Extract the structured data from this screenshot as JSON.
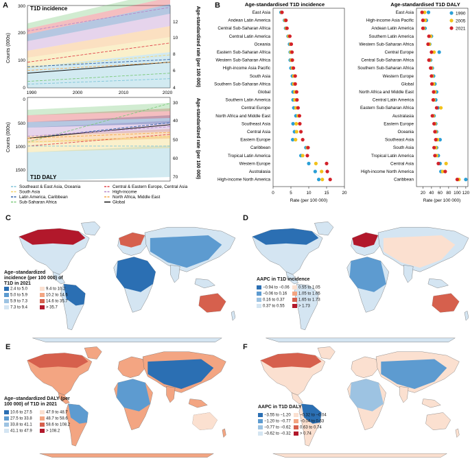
{
  "panels": {
    "A": {
      "letter": "A",
      "incidence": {
        "label": "T1D incidence",
        "left_axis": "Counts (000s)",
        "right_axis": "Age-standardized rate (per 100 000)",
        "left_ticks": [
          "300",
          "200",
          "100",
          "0"
        ],
        "right_ticks": [
          "12",
          "10",
          "8",
          "6",
          "4"
        ],
        "x_ticks": [
          "1990",
          "2000",
          "2010",
          "2020"
        ]
      },
      "daly": {
        "label": "T1D DALY",
        "left_axis": "Counts (000s)",
        "right_axis": "Age-standardized rate (per 100 000)",
        "left_ticks": [
          "0",
          "500",
          "1000",
          "1500"
        ],
        "right_ticks": [
          "30",
          "40",
          "50",
          "60",
          "70"
        ]
      },
      "legend": [
        {
          "label": "Southeast & East Asia, Oceania",
          "color": "#7ec4d8"
        },
        {
          "label": "Central & Eastern Europe, Central Asia",
          "color": "#e0454a"
        },
        {
          "label": "South Asia",
          "color": "#f2d36b"
        },
        {
          "label": "High-income",
          "color": "#b685c8"
        },
        {
          "label": "Latin America, Caribbean",
          "color": "#2c5ea8"
        },
        {
          "label": "North Africa, Middle East",
          "color": "#f3a64d"
        },
        {
          "label": "Sub-Saharan Africa",
          "color": "#7bc97a"
        },
        {
          "label": "Global",
          "color": "#111111"
        }
      ]
    },
    "B": {
      "letter": "B",
      "incidence_title": "Age-standardised T1D incidence",
      "daly_title": "Age-standardised T1D DALY",
      "xlabel": "Rate (per 100 000)",
      "legend": [
        {
          "label": "1990",
          "color": "#2a9fd6"
        },
        {
          "label": "2005",
          "color": "#f2c21b"
        },
        {
          "label": "2021",
          "color": "#d3222a"
        }
      ]
    },
    "C": {
      "letter": "C",
      "title": "Age–standardized incidence (per 100 000) of T1D in 2021",
      "legend": [
        "2.4 to 5.0",
        "5.0 to 5.9",
        "5.9 to 7.3",
        "7.3 to 9.4",
        "9.4 to 10.2",
        "10.2 to 14.6",
        "14.6 to 35.7",
        "> 35.7"
      ]
    },
    "D": {
      "letter": "D",
      "title": "AAPC in T1D incidence",
      "legend": [
        "−0.94 to −0.06",
        "−0.06 to 0.16",
        "0.16 to 0.37",
        "0.37 to 0.55",
        "0.55 to 1.05",
        "1.05 to 1.65",
        "1.65 to 1.73",
        "> 1.73"
      ]
    },
    "E": {
      "letter": "E",
      "title": "Age–standardized DALY (per 100 000) of T1D in 2021",
      "legend": [
        "10.6 to 27.5",
        "27.5 to 33.8",
        "33.8 to 41.1",
        "41.1 to 47.9",
        "47.9 to 48.7",
        "48.7 to 58.6",
        "58.6 to 108.2",
        "> 108.2"
      ]
    },
    "F": {
      "letter": "F",
      "title": "AAPC in T1D DALY",
      "legend": [
        "−3.55 to −1.20",
        "−1.20 to −0.77",
        "−0.77 to −0.62",
        "−0.62 to −0.32",
        "−0.32 to −0.04",
        "−0.04 to 0.63",
        "0.63 to 0.74",
        "> 0.74"
      ]
    }
  },
  "legend_colors": [
    "#2b6fb3",
    "#5d9bd0",
    "#9dc3e2",
    "#d4e5f2",
    "#fbe0d0",
    "#f3a582",
    "#d6604d",
    "#b2182b"
  ],
  "chart_data": [
    {
      "type": "area",
      "title": "T1D incidence",
      "xlabel": "",
      "ylabel": "Counts (000s)",
      "y2label": "Age-standardized rate (per 100 000)",
      "x": [
        1990,
        2021
      ],
      "ylim": [
        0,
        300
      ],
      "y2lim": [
        4,
        13
      ],
      "stacked_counts_2021_top": 280,
      "series_rates": [
        {
          "name": "High-income",
          "start": 10.2,
          "end": 12.8
        },
        {
          "name": "Central & Eastern Europe, Central Asia",
          "start": 6.8,
          "end": 8.9
        },
        {
          "name": "South Asia",
          "start": 6.2,
          "end": 7.6
        },
        {
          "name": "Latin America, Caribbean",
          "start": 6.3,
          "end": 7.1
        },
        {
          "name": "Global",
          "start": 5.6,
          "end": 6.8
        },
        {
          "name": "North Africa, Middle East",
          "start": 5.9,
          "end": 6.8
        },
        {
          "name": "Sub-Saharan Africa",
          "start": 4.7,
          "end": 5.6
        },
        {
          "name": "Southeast & East Asia, Oceania",
          "start": 4.4,
          "end": 5.0
        }
      ]
    },
    {
      "type": "area",
      "title": "T1D DALY",
      "ylabel": "Counts (000s)",
      "y2label": "Age-standardized rate (per 100 000)",
      "x": [
        1990,
        2021
      ],
      "ylim": [
        0,
        1600
      ],
      "y2lim": [
        27,
        70
      ],
      "series_rates": [
        {
          "name": "Sub-Saharan Africa",
          "start": 50,
          "end": 30
        },
        {
          "name": "Latin America, Caribbean",
          "start": 48,
          "end": 40
        },
        {
          "name": "Global",
          "start": 48,
          "end": 41
        },
        {
          "name": "North Africa, Middle East",
          "start": 48,
          "end": 45
        },
        {
          "name": "Central & Eastern Europe, Central Asia",
          "start": 52,
          "end": 46
        },
        {
          "name": "High-income",
          "start": 47,
          "end": 42
        },
        {
          "name": "South Asia",
          "start": 50,
          "end": 47
        },
        {
          "name": "Southeast & East Asia, Oceania",
          "start": 52,
          "end": 52
        }
      ]
    },
    {
      "type": "scatter",
      "title": "Age-standardised T1D incidence",
      "xlabel": "Rate (per 100 000)",
      "xlim": [
        0,
        20
      ],
      "xticks": [
        0,
        5,
        10,
        15,
        20
      ],
      "categories": [
        "East Asia",
        "Andean Latin America",
        "Central Sub-Saharan Africa",
        "Central Latin America",
        "Oceania",
        "Eastern Sub-Saharan Africa",
        "Western Sub-Saharan Africa",
        "High-income Asia Pacific",
        "South Asia",
        "Southern Sub-Saharan Africa",
        "Global",
        "Southern Latin America",
        "Central Europe",
        "North Africa and Middle East",
        "Southeast Asia",
        "Central Asia",
        "Eastern Europe",
        "Caribbean",
        "Tropical Latin America",
        "Western Europe",
        "Australasia",
        "High-income North America"
      ],
      "series": [
        {
          "name": "1990",
          "values": [
            2.2,
            3.2,
            3.5,
            4.2,
            4.6,
            4.8,
            4.8,
            5.0,
            5.4,
            5.4,
            5.6,
            5.6,
            5.8,
            6.4,
            5.6,
            6.0,
            5.5,
            9.2,
            7.8,
            10.0,
            11.8,
            12.8
          ]
        },
        {
          "name": "2005",
          "values": [
            2.4,
            3.4,
            3.7,
            4.4,
            4.9,
            5.0,
            5.1,
            5.4,
            5.8,
            5.8,
            6.1,
            6.1,
            6.4,
            7.0,
            6.5,
            6.6,
            6.3,
            9.6,
            8.3,
            12.0,
            13.6,
            13.8
          ]
        },
        {
          "name": "2021",
          "values": [
            2.5,
            3.6,
            3.9,
            4.7,
            5.1,
            5.3,
            5.4,
            5.7,
            6.2,
            6.2,
            6.6,
            6.7,
            7.0,
            7.4,
            7.5,
            7.8,
            8.3,
            9.8,
            9.6,
            15.0,
            15.2,
            16.0
          ]
        }
      ]
    },
    {
      "type": "scatter",
      "title": "Age-standardised T1D DALY",
      "xlabel": "Rate (per 100 000)",
      "xlim": [
        0,
        125
      ],
      "xticks": [
        20,
        40,
        60,
        80,
        100,
        120
      ],
      "categories": [
        "East Asia",
        "High-income Asia Pacific",
        "Andean Latin America",
        "Southern Latin America",
        "Western Sub-Saharan Africa",
        "Central Europe",
        "Central Sub-Saharan Africa",
        "Southern Sub-Saharan Africa",
        "Western Europe",
        "Global",
        "North Africa and Middle East",
        "Central Latin America",
        "Eastern Sub-Saharan Africa",
        "Australasia",
        "Eastern Europe",
        "Oceania",
        "Southeast Asia",
        "South Asia",
        "Tropical Latin America",
        "Central Asia",
        "High-income North America",
        "Caribbean"
      ],
      "series": [
        {
          "name": "1990",
          "values": [
            33,
            28,
            25,
            40,
            36,
            58,
            38,
            42,
            45,
            48,
            52,
            50,
            55,
            46,
            50,
            52,
            60,
            52,
            56,
            60,
            62,
            120
          ]
        },
        {
          "name": "2005",
          "values": [
            24,
            25,
            22,
            38,
            35,
            46,
            36,
            40,
            42,
            45,
            48,
            46,
            62,
            44,
            48,
            50,
            54,
            50,
            52,
            74,
            66,
            104
          ]
        },
        {
          "name": "2021",
          "values": [
            18,
            20,
            20,
            34,
            32,
            40,
            34,
            38,
            40,
            41,
            45,
            44,
            52,
            42,
            46,
            48,
            50,
            46,
            48,
            56,
            72,
            100
          ]
        }
      ]
    }
  ]
}
